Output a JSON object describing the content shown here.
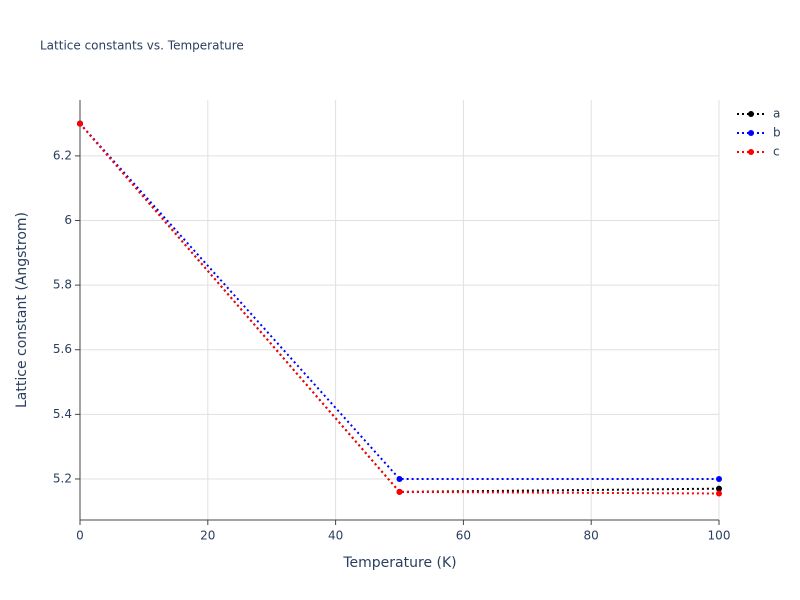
{
  "chart_data": {
    "type": "line",
    "title": "Lattice constants vs. Temperature",
    "x_label": "Temperature (K)",
    "y_label": "Lattice constant (Angstrom)",
    "x": [
      0,
      50,
      100
    ],
    "series": [
      {
        "name": "a",
        "color": "#000000",
        "values": [
          6.3,
          5.16,
          5.17
        ]
      },
      {
        "name": "b",
        "color": "#0000ff",
        "values": [
          6.3,
          5.2,
          5.2
        ]
      },
      {
        "name": "c",
        "color": "#ff0000",
        "values": [
          6.3,
          5.16,
          5.155
        ]
      }
    ],
    "xlim": [
      0,
      100
    ],
    "xticks": [
      0,
      20,
      40,
      60,
      80,
      100
    ],
    "ylim": [
      5.073,
      6.373
    ],
    "yticks": [
      5.2,
      5.4,
      5.6,
      5.8,
      6,
      6.2
    ],
    "grid": true,
    "legend": "top-right"
  }
}
